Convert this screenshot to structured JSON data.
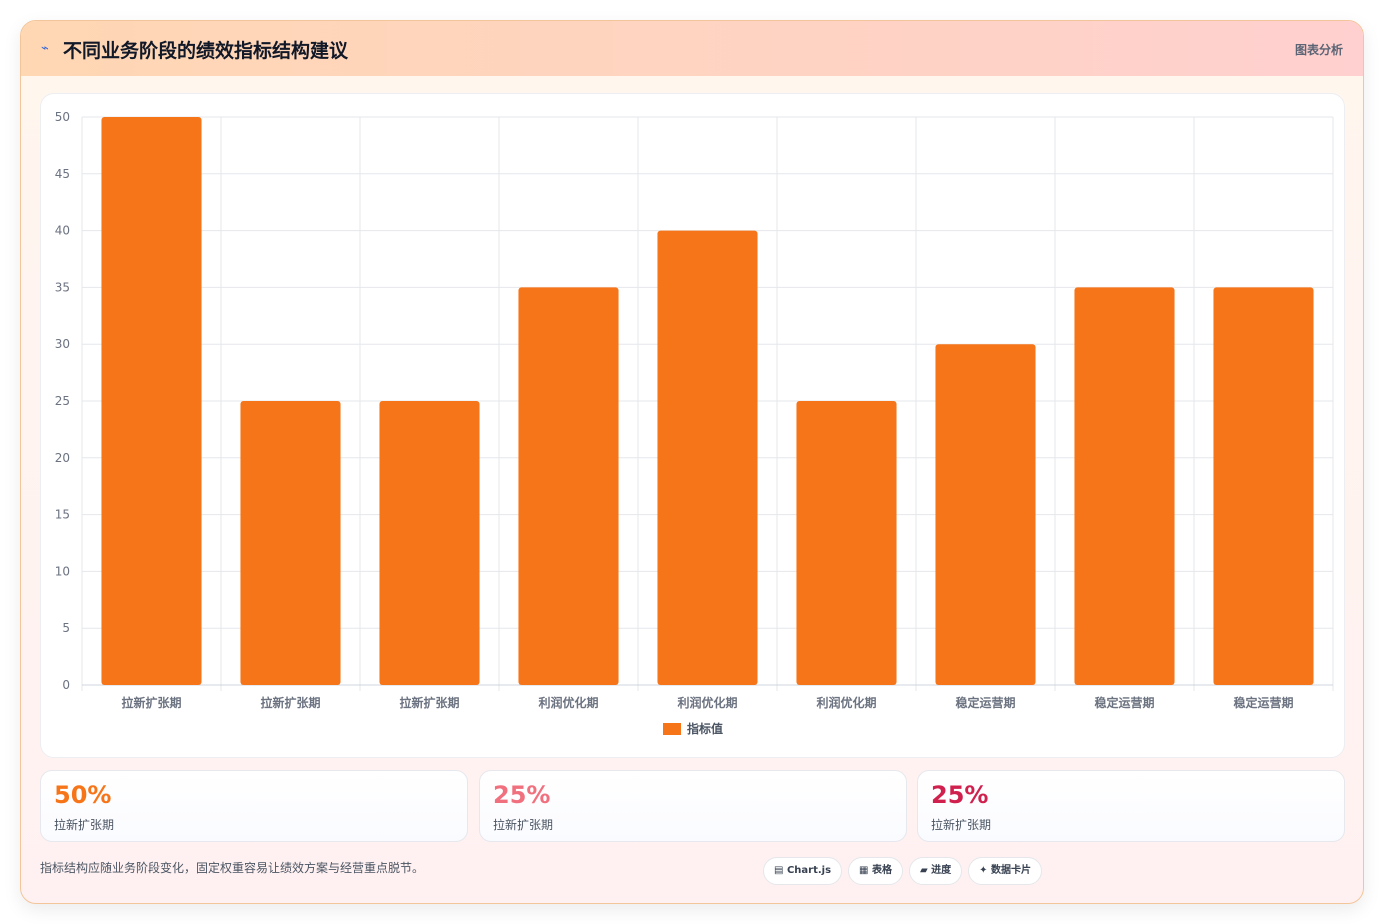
{
  "header": {
    "icon": "lightning-icon",
    "title": "不同业务阶段的绩效指标结构建议",
    "tag": "图表分析"
  },
  "chart_data": {
    "type": "bar",
    "categories": [
      "拉新扩张期",
      "拉新扩张期",
      "拉新扩张期",
      "利润优化期",
      "利润优化期",
      "利润优化期",
      "稳定运营期",
      "稳定运营期",
      "稳定运营期"
    ],
    "series": [
      {
        "name": "指标值",
        "values": [
          50,
          25,
          25,
          35,
          40,
          25,
          30,
          35,
          35
        ],
        "color": "#f77519"
      }
    ],
    "yticks": [
      0,
      5,
      10,
      15,
      20,
      25,
      30,
      35,
      40,
      45,
      50
    ],
    "ylim": [
      0,
      50
    ],
    "grid": true,
    "legend": "bottom"
  },
  "stats": [
    {
      "value": "50%",
      "label": "拉新扩张期",
      "color": "#f77519"
    },
    {
      "value": "25%",
      "label": "拉新扩张期",
      "color": "#f0707e"
    },
    {
      "value": "25%",
      "label": "拉新扩张期",
      "color": "#d0214e"
    }
  ],
  "footer": {
    "note": "指标结构应随业务阶段变化，固定权重容易让绩效方案与经营重点脱节。",
    "chips": [
      {
        "icon": "chart-icon",
        "label": "Chart.js",
        "glyph": "▤"
      },
      {
        "icon": "table-icon",
        "label": "表格",
        "glyph": "▦"
      },
      {
        "icon": "progress-icon",
        "label": "进度",
        "glyph": "▰"
      },
      {
        "icon": "sparkle-icon",
        "label": "数据卡片",
        "glyph": "✦"
      }
    ]
  }
}
